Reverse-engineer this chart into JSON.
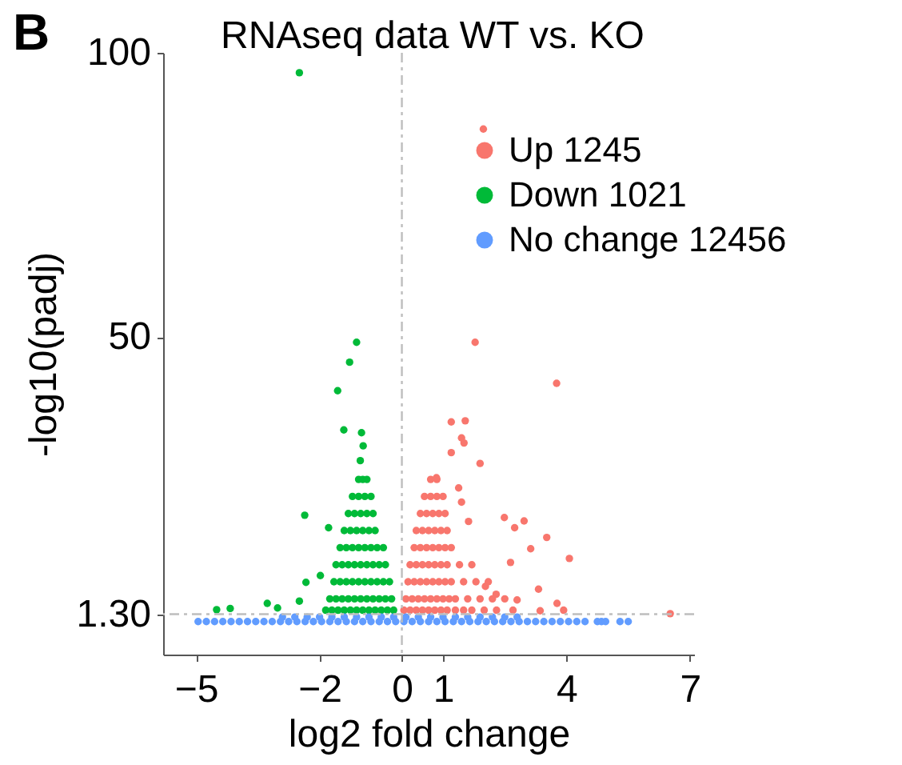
{
  "chart_data": {
    "type": "scatter",
    "title": "RNAseq data WT vs. KO",
    "annotations": [
      "B"
    ],
    "xlabel": "log2 fold change",
    "ylabel": "-log10(padj)",
    "xlim": [
      -5.8,
      7.1
    ],
    "ylim": [
      -5.8,
      100
    ],
    "xticks": [
      -5,
      -2,
      0,
      1,
      4,
      7
    ],
    "yticks": [
      {
        "value": 1.3,
        "label": "1.30"
      },
      50,
      100
    ],
    "marker": "circle",
    "legend": "top right",
    "grid": false,
    "ref_lines": [
      {
        "axis": "x",
        "value": 0,
        "color": "#bebebe",
        "line_style": "dashed"
      },
      {
        "axis": "y",
        "value": 1.3,
        "color": "#bebebe",
        "line_style": "dashed"
      }
    ],
    "series": [
      {
        "name": "Up 1245",
        "color": "#f8766d",
        "x": [
          1.98,
          1.78,
          3.76,
          1.2,
          1.54,
          1.45,
          1.51,
          1.2,
          1.9,
          0.84,
          1.38,
          1.45,
          1.62,
          2.49,
          2.97,
          2.74,
          3.52,
          3.13,
          2.64,
          4.07,
          3.32,
          3.77,
          3.36,
          3.93,
          6.52,
          2.03,
          2.29,
          2.8,
          0.7,
          0.85,
          0.55,
          0.7,
          0.85,
          1.0,
          0.45,
          0.6,
          0.75,
          0.9,
          1.05,
          0.35,
          0.5,
          0.65,
          0.8,
          0.95,
          1.1,
          0.3,
          0.45,
          0.6,
          0.75,
          0.9,
          1.05,
          1.2,
          0.2,
          0.35,
          0.5,
          0.65,
          0.8,
          0.95,
          1.1,
          1.4,
          1.7,
          0.15,
          0.3,
          0.45,
          0.6,
          0.75,
          0.9,
          1.05,
          1.2,
          1.5,
          1.8,
          2.1,
          0.1,
          0.25,
          0.4,
          0.55,
          0.7,
          0.85,
          1.0,
          1.15,
          1.3,
          1.6,
          1.9,
          2.2,
          2.5,
          0.05,
          0.2,
          0.35,
          0.5,
          0.65,
          0.8,
          0.95,
          1.1,
          1.3,
          1.5,
          1.7,
          2.0,
          2.3,
          2.7
        ],
        "values": [
          86.6,
          49.1,
          41.9,
          35.1,
          35.3,
          32.3,
          31.4,
          29.7,
          27.8,
          25.3,
          23.5,
          21,
          17.6,
          18.3,
          17.7,
          16.5,
          14.8,
          12.8,
          10.4,
          11.1,
          5.7,
          3.2,
          1.9,
          2.0,
          1.4,
          6.2,
          4.8,
          3.8,
          25,
          25,
          22,
          22,
          22,
          22,
          19,
          19,
          19,
          19,
          19,
          16,
          16,
          16,
          16,
          16,
          16,
          13,
          13,
          13,
          13,
          13,
          13,
          13,
          10,
          10,
          10,
          10,
          10,
          10,
          10,
          10,
          10,
          7,
          7,
          7,
          7,
          7,
          7,
          7,
          7,
          7,
          7,
          7,
          4,
          4,
          4,
          4,
          4,
          4,
          4,
          4,
          4,
          4,
          4,
          4,
          4,
          2,
          2,
          2,
          2,
          2,
          2,
          2,
          2,
          2,
          2,
          2,
          2,
          2,
          2
        ]
      },
      {
        "name": "Down 1021",
        "color": "#00ba38",
        "x": [
          -2.49,
          -1.1,
          -1.27,
          -1.56,
          -1.41,
          -0.98,
          -0.94,
          -1.01,
          -2.36,
          -2.33,
          -4.5,
          -4.17,
          -3.27,
          -3.02,
          -2.49,
          -1.98,
          -1.78,
          -1.05,
          -0.95,
          -0.85,
          -1.2,
          -1.05,
          -0.9,
          -0.75,
          -1.3,
          -1.15,
          -1.0,
          -0.85,
          -0.7,
          -1.4,
          -1.25,
          -1.1,
          -0.95,
          -0.8,
          -0.65,
          -1.5,
          -1.35,
          -1.2,
          -1.05,
          -0.9,
          -0.75,
          -0.6,
          -0.45,
          -1.6,
          -1.45,
          -1.3,
          -1.15,
          -1.0,
          -0.85,
          -0.7,
          -0.55,
          -0.4,
          -1.65,
          -1.5,
          -1.35,
          -1.2,
          -1.05,
          -0.9,
          -0.75,
          -0.6,
          -0.45,
          -0.3,
          -1.75,
          -1.6,
          -1.45,
          -1.3,
          -1.15,
          -1.0,
          -0.85,
          -0.7,
          -0.55,
          -0.4,
          -0.25,
          -1.85,
          -1.7,
          -1.55,
          -1.4,
          -1.25,
          -1.1,
          -0.95,
          -0.8,
          -0.65,
          -0.5,
          -0.35,
          -0.2
        ],
        "values": [
          96.5,
          49.1,
          45.6,
          40.6,
          33.7,
          33.2,
          30.9,
          28.3,
          18.7,
          6.9,
          2.1,
          2.3,
          3.2,
          2.4,
          3.6,
          8.1,
          16.5,
          25,
          25,
          25,
          22,
          22,
          22,
          22,
          19,
          19,
          19,
          19,
          19,
          16,
          16,
          16,
          16,
          16,
          16,
          13,
          13,
          13,
          13,
          13,
          13,
          13,
          13,
          10,
          10,
          10,
          10,
          10,
          10,
          10,
          10,
          10,
          7,
          7,
          7,
          7,
          7,
          7,
          7,
          7,
          7,
          7,
          4,
          4,
          4,
          4,
          4,
          4,
          4,
          4,
          4,
          4,
          4,
          2,
          2,
          2,
          2,
          2,
          2,
          2,
          2,
          2,
          2,
          2,
          2
        ]
      },
      {
        "name": "No change 12456",
        "color": "#619cff",
        "x": [
          -4.95,
          -4.75,
          -4.55,
          -4.35,
          -4.15,
          -3.95,
          -3.75,
          -3.55,
          -3.35,
          -3.15,
          -2.95,
          -2.75,
          -2.55,
          -2.35,
          -2.15,
          -1.95,
          -1.75,
          -1.55,
          -1.35,
          -1.15,
          -0.95,
          -0.75,
          -0.55,
          -0.35,
          -0.15,
          0.05,
          0.25,
          0.45,
          0.65,
          0.85,
          1.05,
          1.25,
          1.45,
          1.65,
          1.85,
          2.05,
          2.25,
          2.45,
          2.65,
          2.85,
          3.05,
          3.25,
          3.45,
          3.65,
          3.85,
          4.05,
          4.25,
          4.45,
          4.75,
          4.85,
          4.95,
          5.3,
          5.5,
          -2.9,
          -2.6,
          -2.3,
          -2.0,
          -1.7,
          -1.4,
          -1.1,
          -0.8,
          -0.5,
          -0.2,
          0.1,
          0.4,
          0.7,
          1.0,
          1.3,
          1.6,
          1.9,
          2.2,
          2.5,
          2.8
        ],
        "values": [
          0,
          0,
          0,
          0,
          0,
          0,
          0,
          0,
          0,
          0,
          0,
          0,
          0,
          0,
          0,
          0,
          0,
          0,
          0,
          0,
          0,
          0,
          0,
          0,
          0,
          0,
          0,
          0,
          0,
          0,
          0,
          0,
          0,
          0,
          0,
          0,
          0,
          0,
          0,
          0,
          0,
          0,
          0,
          0,
          0,
          0,
          0,
          0,
          0,
          0,
          0,
          0,
          0,
          0.8,
          0.8,
          0.8,
          0.8,
          0.8,
          0.8,
          0.8,
          0.8,
          0.8,
          0.8,
          0.8,
          0.8,
          0.8,
          0.8,
          0.8,
          0.8,
          0.8,
          0.8,
          0.8,
          0.8
        ]
      }
    ]
  }
}
